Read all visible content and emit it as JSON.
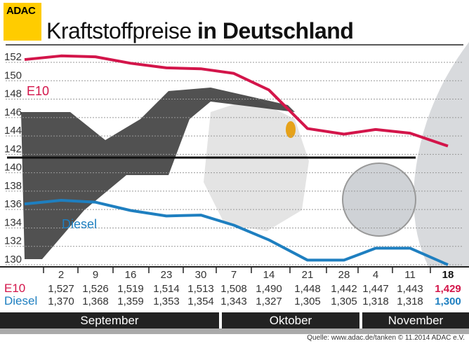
{
  "logo": "ADAC",
  "title": {
    "light": "Kraftstoffpreise",
    "bold": "in Deutschland"
  },
  "colors": {
    "e10": "#d3154a",
    "diesel": "#1e7fc0",
    "logo": "#ffcc00"
  },
  "chart_data": {
    "type": "line",
    "yticks": [
      "152",
      "150",
      "148",
      "146",
      "144",
      "142",
      "140",
      "138",
      "136",
      "134",
      "132",
      "130"
    ],
    "ylim": [
      130,
      152
    ],
    "grid": true,
    "categories": [
      "2",
      "9",
      "16",
      "23",
      "30",
      "7",
      "14",
      "21",
      "28",
      "4",
      "11",
      "18"
    ],
    "series": [
      {
        "name": "E10",
        "values": [
          "1,527",
          "1,526",
          "1,519",
          "1,514",
          "1,513",
          "1,508",
          "1,490",
          "1,448",
          "1,442",
          "1,447",
          "1,443",
          "1,429"
        ]
      },
      {
        "name": "Diesel",
        "values": [
          "1,370",
          "1,368",
          "1,359",
          "1,353",
          "1,354",
          "1,343",
          "1,327",
          "1,305",
          "1,305",
          "1,318",
          "1,318",
          "1,300"
        ]
      }
    ],
    "months": [
      "September",
      "Oktober",
      "November"
    ]
  },
  "source": "Quelle: www.adac.de/tanken  © 11.2014  ADAC e.V."
}
